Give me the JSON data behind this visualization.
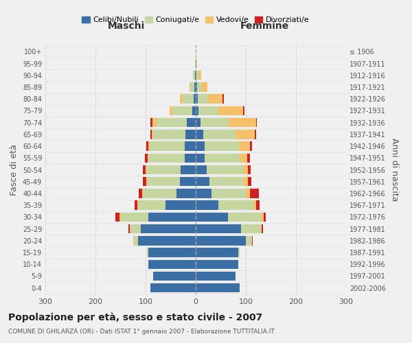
{
  "age_groups": [
    "0-4",
    "5-9",
    "10-14",
    "15-19",
    "20-24",
    "25-29",
    "30-34",
    "35-39",
    "40-44",
    "45-49",
    "50-54",
    "55-59",
    "60-64",
    "65-69",
    "70-74",
    "75-79",
    "80-84",
    "85-89",
    "90-94",
    "95-99",
    "100+"
  ],
  "birth_years": [
    "2002-2006",
    "1997-2001",
    "1992-1996",
    "1987-1991",
    "1982-1986",
    "1977-1981",
    "1972-1976",
    "1967-1971",
    "1962-1966",
    "1957-1961",
    "1952-1956",
    "1947-1951",
    "1942-1946",
    "1937-1941",
    "1932-1936",
    "1927-1931",
    "1922-1926",
    "1917-1921",
    "1912-1916",
    "1907-1911",
    "≤ 1906"
  ],
  "maschi": {
    "celibi": [
      90,
      85,
      95,
      95,
      115,
      110,
      95,
      60,
      38,
      32,
      30,
      22,
      22,
      20,
      18,
      7,
      4,
      3,
      2,
      0,
      0
    ],
    "coniugati": [
      0,
      0,
      0,
      2,
      8,
      20,
      55,
      55,
      68,
      65,
      68,
      72,
      70,
      65,
      60,
      40,
      22,
      8,
      3,
      1,
      0
    ],
    "vedovi": [
      0,
      0,
      0,
      0,
      1,
      2,
      2,
      2,
      1,
      1,
      2,
      2,
      2,
      2,
      8,
      5,
      5,
      2,
      0,
      0,
      0
    ],
    "divorziati": [
      0,
      0,
      0,
      0,
      1,
      2,
      8,
      5,
      7,
      7,
      5,
      5,
      4,
      4,
      5,
      0,
      0,
      0,
      0,
      0,
      0
    ]
  },
  "femmine": {
    "nubili": [
      88,
      80,
      85,
      85,
      100,
      90,
      65,
      45,
      32,
      28,
      22,
      18,
      18,
      15,
      10,
      5,
      4,
      3,
      2,
      0,
      0
    ],
    "coniugate": [
      0,
      0,
      0,
      2,
      12,
      40,
      65,
      70,
      68,
      68,
      72,
      70,
      68,
      65,
      55,
      40,
      20,
      10,
      4,
      1,
      0
    ],
    "vedove": [
      0,
      0,
      0,
      0,
      1,
      2,
      5,
      5,
      8,
      8,
      10,
      15,
      22,
      38,
      55,
      50,
      30,
      10,
      5,
      2,
      0
    ],
    "divorziate": [
      0,
      0,
      0,
      0,
      1,
      2,
      5,
      8,
      18,
      7,
      5,
      5,
      5,
      3,
      2,
      2,
      2,
      0,
      0,
      0,
      0
    ]
  },
  "colors": {
    "celibi": "#3a6ea5",
    "coniugati": "#c5d6a0",
    "vedovi": "#f5c06a",
    "divorziati": "#cc2222"
  },
  "xlim": 300,
  "title": "Popolazione per età, sesso e stato civile - 2007",
  "subtitle": "COMUNE DI GHILARZA (OR) - Dati ISTAT 1° gennaio 2007 - Elaborazione TUTTITALIA.IT",
  "ylabel": "Fasce di età",
  "ylabel2": "Anni di nascita",
  "xlabel_left": "Maschi",
  "xlabel_right": "Femmine",
  "legend_labels": [
    "Celibi/Nubili",
    "Coniugati/e",
    "Vedovi/e",
    "Divorziati/e"
  ],
  "bg_color": "#f0f0f0"
}
